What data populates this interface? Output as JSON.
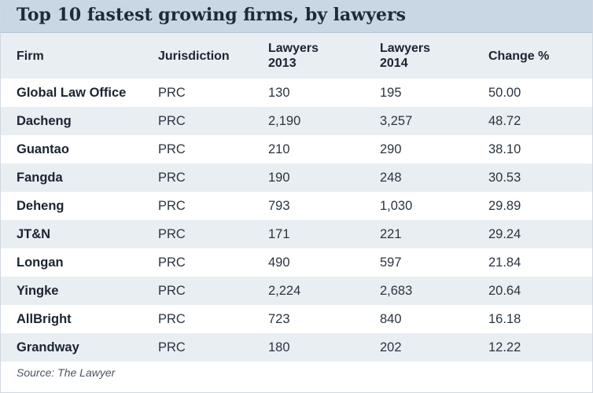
{
  "chart_data": {
    "type": "table",
    "title": "Top 10 fastest growing firms, by lawyers",
    "columns": [
      "Firm",
      "Jurisdiction",
      "Lawyers\n2013",
      "Lawyers\n2014",
      "Change %"
    ],
    "rows": [
      [
        "Global Law Office",
        "PRC",
        "130",
        "195",
        "50.00"
      ],
      [
        "Dacheng",
        "PRC",
        "2,190",
        "3,257",
        "48.72"
      ],
      [
        "Guantao",
        "PRC",
        "210",
        "290",
        "38.10"
      ],
      [
        "Fangda",
        "PRC",
        "190",
        "248",
        "30.53"
      ],
      [
        "Deheng",
        "PRC",
        "793",
        "1,030",
        "29.89"
      ],
      [
        "JT&N",
        "PRC",
        "171",
        "221",
        "29.24"
      ],
      [
        "Longan",
        "PRC",
        "490",
        "597",
        "21.84"
      ],
      [
        "Yingke",
        "PRC",
        "2,224",
        "2,683",
        "20.64"
      ],
      [
        "AllBright",
        "PRC",
        "723",
        "840",
        "16.18"
      ],
      [
        "Grandway",
        "PRC",
        "180",
        "202",
        "12.22"
      ]
    ],
    "source": "Source: The Lawyer"
  },
  "colors": {
    "title_bar": "#c9d7e5",
    "stripe": "#e9eef3",
    "text": "#1b2430"
  }
}
